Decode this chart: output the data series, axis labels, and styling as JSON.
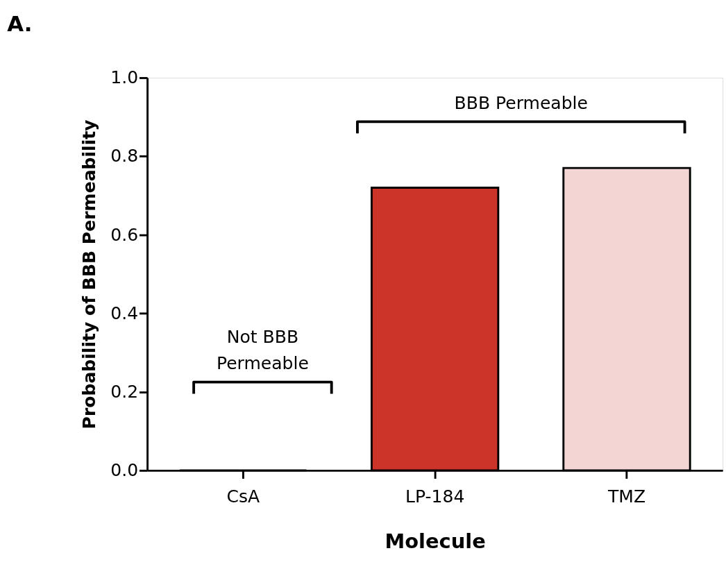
{
  "chart_data": {
    "type": "bar",
    "title": "A.",
    "xlabel": "Molecule",
    "ylabel": "Probability of BBB Permeability",
    "categories": [
      "CsA",
      "LP-184",
      "TMZ"
    ],
    "values": [
      0,
      0.72,
      0.77
    ],
    "colors": [
      "#cc3329",
      "#cc3329",
      "#f3d5d4"
    ],
    "ylim": [
      0,
      1.0
    ],
    "yticks": [
      {
        "value": 0,
        "label": "0.0"
      },
      {
        "value": 0.2,
        "label": "0.2"
      },
      {
        "value": 0.4,
        "label": "0.4"
      },
      {
        "value": 0.6,
        "label": "0.6"
      },
      {
        "value": 0.8,
        "label": "0.8"
      },
      {
        "value": 1.0,
        "label": "1.0"
      }
    ],
    "grid": false,
    "annotations": [
      "Not BBB Permeable",
      "BBB Permeable"
    ]
  }
}
